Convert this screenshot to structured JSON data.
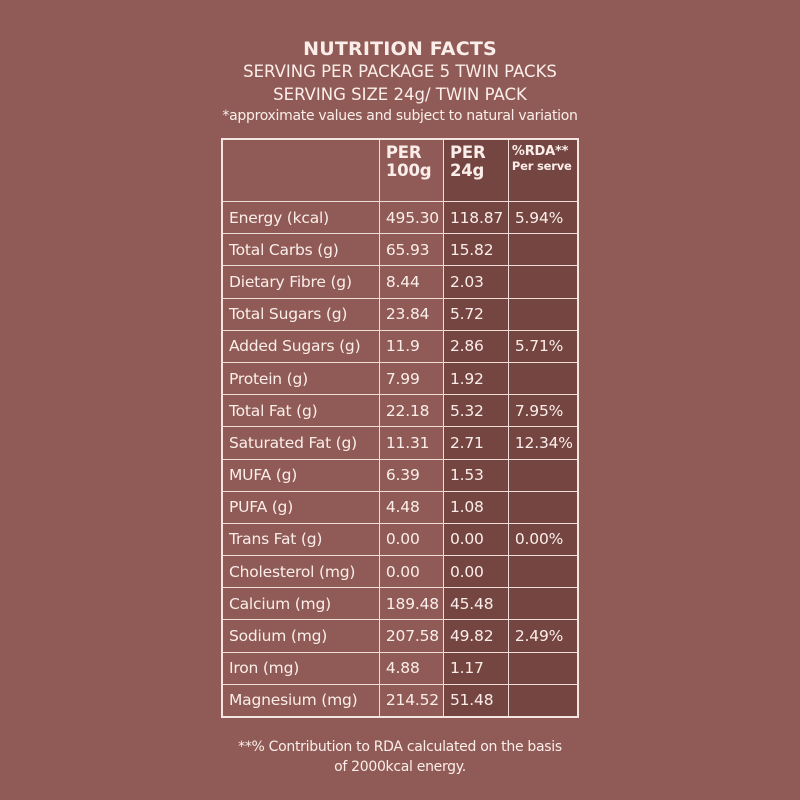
{
  "header": {
    "title": "NUTRITION FACTS",
    "serving_per_package": "SERVING PER PACKAGE 5 TWIN PACKS",
    "serving_size": "SERVING SIZE 24g/ TWIN PACK",
    "note": "*approximate values and subject to natural variation"
  },
  "table": {
    "columns": [
      {
        "line1": "",
        "line2": ""
      },
      {
        "line1": "PER",
        "line2": "100g"
      },
      {
        "line1": "PER",
        "line2": "24g"
      },
      {
        "line1": "%RDA**",
        "line2": "Per serve"
      }
    ],
    "rows": [
      {
        "nutrient": "Energy (kcal)",
        "per100g": "495.30",
        "per24g": "118.87",
        "rda": "5.94%"
      },
      {
        "nutrient": "Total Carbs (g)",
        "per100g": "65.93",
        "per24g": "15.82",
        "rda": ""
      },
      {
        "nutrient": "Dietary Fibre (g)",
        "per100g": "8.44",
        "per24g": "2.03",
        "rda": ""
      },
      {
        "nutrient": "Total Sugars (g)",
        "per100g": "23.84",
        "per24g": "5.72",
        "rda": ""
      },
      {
        "nutrient": "Added Sugars (g)",
        "per100g": "11.9",
        "per24g": "2.86",
        "rda": "5.71%"
      },
      {
        "nutrient": "Protein (g)",
        "per100g": "7.99",
        "per24g": "1.92",
        "rda": ""
      },
      {
        "nutrient": "Total Fat (g)",
        "per100g": "22.18",
        "per24g": "5.32",
        "rda": "7.95%"
      },
      {
        "nutrient": "Saturated Fat (g)",
        "per100g": "11.31",
        "per24g": "2.71",
        "rda": "12.34%"
      },
      {
        "nutrient": "MUFA (g)",
        "per100g": "6.39",
        "per24g": "1.53",
        "rda": ""
      },
      {
        "nutrient": "PUFA (g)",
        "per100g": "4.48",
        "per24g": "1.08",
        "rda": ""
      },
      {
        "nutrient": "Trans Fat (g)",
        "per100g": "0.00",
        "per24g": "0.00",
        "rda": "0.00%"
      },
      {
        "nutrient": "Cholesterol (mg)",
        "per100g": "0.00",
        "per24g": "0.00",
        "rda": ""
      },
      {
        "nutrient": "Calcium (mg)",
        "per100g": "189.48",
        "per24g": "45.48",
        "rda": ""
      },
      {
        "nutrient": "Sodium (mg)",
        "per100g": "207.58",
        "per24g": "49.82",
        "rda": "2.49%"
      },
      {
        "nutrient": "Iron (mg)",
        "per100g": "4.88",
        "per24g": "1.17",
        "rda": ""
      },
      {
        "nutrient": "Magnesium (mg)",
        "per100g": "214.52",
        "per24g": "51.48",
        "rda": ""
      }
    ]
  },
  "footer": {
    "line1": "**% Contribution to RDA calculated on the basis",
    "line2": "of 2000kcal energy."
  },
  "colors": {
    "background": "#905b56",
    "dark_cells": "#744541",
    "text": "#fbeeea",
    "border": "#f0dcd7"
  }
}
